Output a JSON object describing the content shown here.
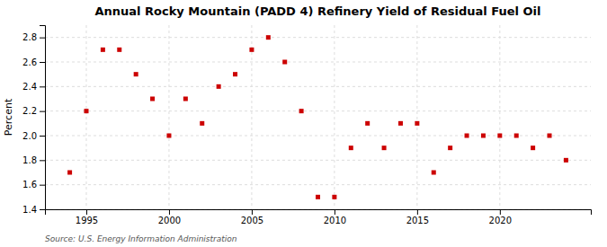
{
  "chart_data": {
    "type": "scatter",
    "title": "Annual Rocky Mountain (PADD 4) Refinery Yield of Residual Fuel Oil",
    "ylabel": "Percent",
    "source": "Source: U.S. Energy Information Administration",
    "x": [
      1994,
      1995,
      1996,
      1997,
      1998,
      1999,
      2000,
      2001,
      2002,
      2003,
      2004,
      2005,
      2006,
      2007,
      2008,
      2009,
      2010,
      2011,
      2012,
      2013,
      2014,
      2015,
      2016,
      2017,
      2018,
      2019,
      2020,
      2021,
      2022,
      2023,
      2024
    ],
    "values": [
      1.7,
      2.2,
      2.7,
      2.7,
      2.5,
      2.3,
      2.0,
      2.3,
      2.1,
      2.4,
      2.5,
      2.7,
      2.8,
      2.6,
      2.2,
      1.5,
      1.5,
      1.9,
      2.1,
      1.9,
      2.1,
      2.1,
      1.7,
      1.9,
      2.0,
      2.0,
      2.0,
      2.0,
      1.9,
      2.0,
      1.8
    ],
    "color": "#CC0000",
    "marker": "square",
    "grid": true,
    "xlim": [
      1992.5,
      2025.5
    ],
    "ylim": [
      1.4,
      2.9
    ],
    "xticks": [
      1995,
      2000,
      2005,
      2010,
      2015,
      2020
    ],
    "yticks": [
      1.4,
      1.6,
      1.8,
      {
        "value": 2.0,
        "label": "2.0"
      },
      2.2,
      2.4,
      2.6,
      2.8
    ]
  }
}
